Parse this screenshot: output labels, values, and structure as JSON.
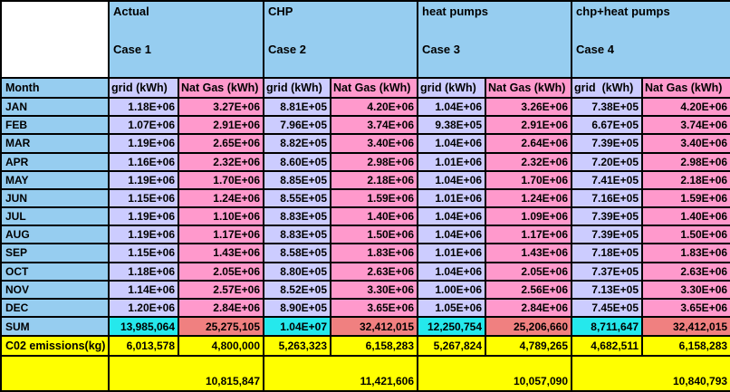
{
  "colors": {
    "blue": "#96CDF0",
    "lavender": "#CCCCFF",
    "pink": "#FF99CC",
    "cyan": "#25E8EC",
    "salmon": "#F08080",
    "yellow": "#FFFF00",
    "border": "#000000",
    "text": "#000000",
    "white": "#FFFFFF"
  },
  "table": {
    "corner": "",
    "month_header": "Month",
    "cases": [
      {
        "name": "Actual",
        "case_label": "Case 1",
        "grid_header": "grid (kWh)",
        "gas_header": "Nat Gas (kWh)"
      },
      {
        "name": "CHP",
        "case_label": "Case 2",
        "grid_header": "grid (kWh)",
        "gas_header": "Nat Gas (kWh)"
      },
      {
        "name": "heat pumps",
        "case_label": "Case 3",
        "grid_header": "grid (kWh)",
        "gas_header": "Nat Gas (kWh)"
      },
      {
        "name": "chp+heat pumps",
        "case_label": "Case 4",
        "grid_header": "grid  (kWh)",
        "gas_header": "Nat Gas (kWh)"
      }
    ],
    "rows": [
      {
        "month": "JAN",
        "values": [
          "1.18E+06",
          "3.27E+06",
          "8.81E+05",
          "4.20E+06",
          "1.04E+06",
          "3.26E+06",
          "7.38E+05",
          "4.20E+06"
        ]
      },
      {
        "month": "FEB",
        "values": [
          "1.07E+06",
          "2.91E+06",
          "7.96E+05",
          "3.74E+06",
          "9.38E+05",
          "2.91E+06",
          "6.67E+05",
          "3.74E+06"
        ]
      },
      {
        "month": "MAR",
        "values": [
          "1.19E+06",
          "2.65E+06",
          "8.82E+05",
          "3.40E+06",
          "1.04E+06",
          "2.64E+06",
          "7.39E+05",
          "3.40E+06"
        ]
      },
      {
        "month": "APR",
        "values": [
          "1.16E+06",
          "2.32E+06",
          "8.60E+05",
          "2.98E+06",
          "1.01E+06",
          "2.32E+06",
          "7.20E+05",
          "2.98E+06"
        ]
      },
      {
        "month": "MAY",
        "values": [
          "1.19E+06",
          "1.70E+06",
          "8.85E+05",
          "2.18E+06",
          "1.04E+06",
          "1.70E+06",
          "7.41E+05",
          "2.18E+06"
        ]
      },
      {
        "month": "JUN",
        "values": [
          "1.15E+06",
          "1.24E+06",
          "8.55E+05",
          "1.59E+06",
          "1.01E+06",
          "1.24E+06",
          "7.16E+05",
          "1.59E+06"
        ]
      },
      {
        "month": "JUL",
        "values": [
          "1.19E+06",
          "1.10E+06",
          "8.83E+05",
          "1.40E+06",
          "1.04E+06",
          "1.09E+06",
          "7.39E+05",
          "1.40E+06"
        ]
      },
      {
        "month": "AUG",
        "values": [
          "1.19E+06",
          "1.17E+06",
          "8.83E+05",
          "1.50E+06",
          "1.04E+06",
          "1.17E+06",
          "7.39E+05",
          "1.50E+06"
        ]
      },
      {
        "month": "SEP",
        "values": [
          "1.15E+06",
          "1.43E+06",
          "8.58E+05",
          "1.83E+06",
          "1.01E+06",
          "1.43E+06",
          "7.18E+05",
          "1.83E+06"
        ]
      },
      {
        "month": "OCT",
        "values": [
          "1.18E+06",
          "2.05E+06",
          "8.80E+05",
          "2.63E+06",
          "1.04E+06",
          "2.05E+06",
          "7.37E+05",
          "2.63E+06"
        ]
      },
      {
        "month": "NOV",
        "values": [
          "1.14E+06",
          "2.57E+06",
          "8.52E+05",
          "3.30E+06",
          "1.00E+06",
          "2.56E+06",
          "7.13E+05",
          "3.30E+06"
        ]
      },
      {
        "month": "DEC",
        "values": [
          "1.20E+06",
          "2.84E+06",
          "8.90E+05",
          "3.65E+06",
          "1.05E+06",
          "2.84E+06",
          "7.45E+05",
          "3.65E+06"
        ]
      }
    ],
    "sum_row": {
      "label": "SUM",
      "values": [
        "13,985,064",
        "25,275,105",
        "1.04E+07",
        "32,412,015",
        "12,250,754",
        "25,206,660",
        "8,711,647",
        "32,412,015"
      ]
    },
    "co2_row": {
      "label": "C02 emissions(kg)",
      "values": [
        "6,013,578",
        "4,800,000",
        "5,263,323",
        "6,158,283",
        "5,267,824",
        "4,789,265",
        "4,682,511",
        "6,158,283"
      ]
    },
    "total_row": {
      "label": "",
      "values": [
        "10,815,847",
        "11,421,606",
        "10,057,090",
        "10,840,793"
      ]
    }
  }
}
